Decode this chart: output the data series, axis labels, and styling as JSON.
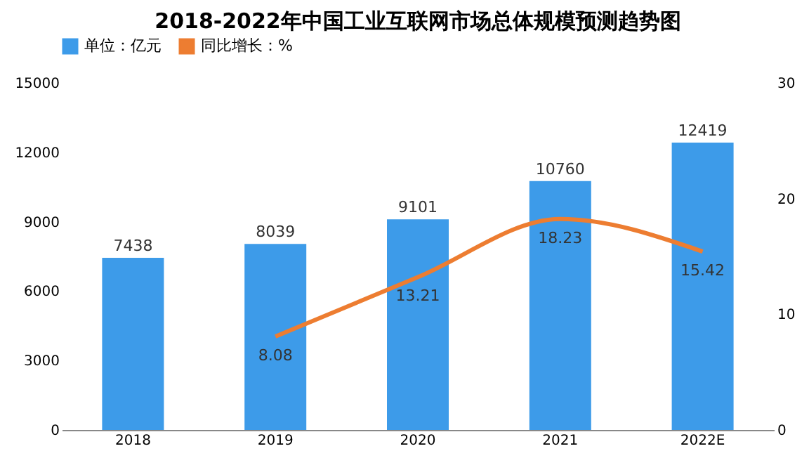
{
  "chart_data": {
    "type": "bar",
    "title": "2018-2022年中国工业互联网市场总体规模预测趋势图",
    "categories": [
      "2018",
      "2019",
      "2020",
      "2021",
      "2022E"
    ],
    "series": [
      {
        "name": "单位：亿元",
        "color": "#3d9be9",
        "values": [
          7438,
          8039,
          9101,
          10760,
          12419
        ]
      },
      {
        "name": "同比增长：%",
        "color": "#ed7d31",
        "type": "line",
        "axis": "y2",
        "values": [
          null,
          8.08,
          13.21,
          18.23,
          15.42
        ]
      }
    ],
    "ylim": [
      0,
      15000
    ],
    "yticks": [
      0,
      3000,
      6000,
      9000,
      12000,
      15000
    ],
    "y2lim": [
      0,
      30
    ],
    "y2ticks": [
      0,
      10,
      20,
      30
    ],
    "data_labels": true,
    "grid": false,
    "legend": "top",
    "marker": "none",
    "line_style": "solid"
  }
}
